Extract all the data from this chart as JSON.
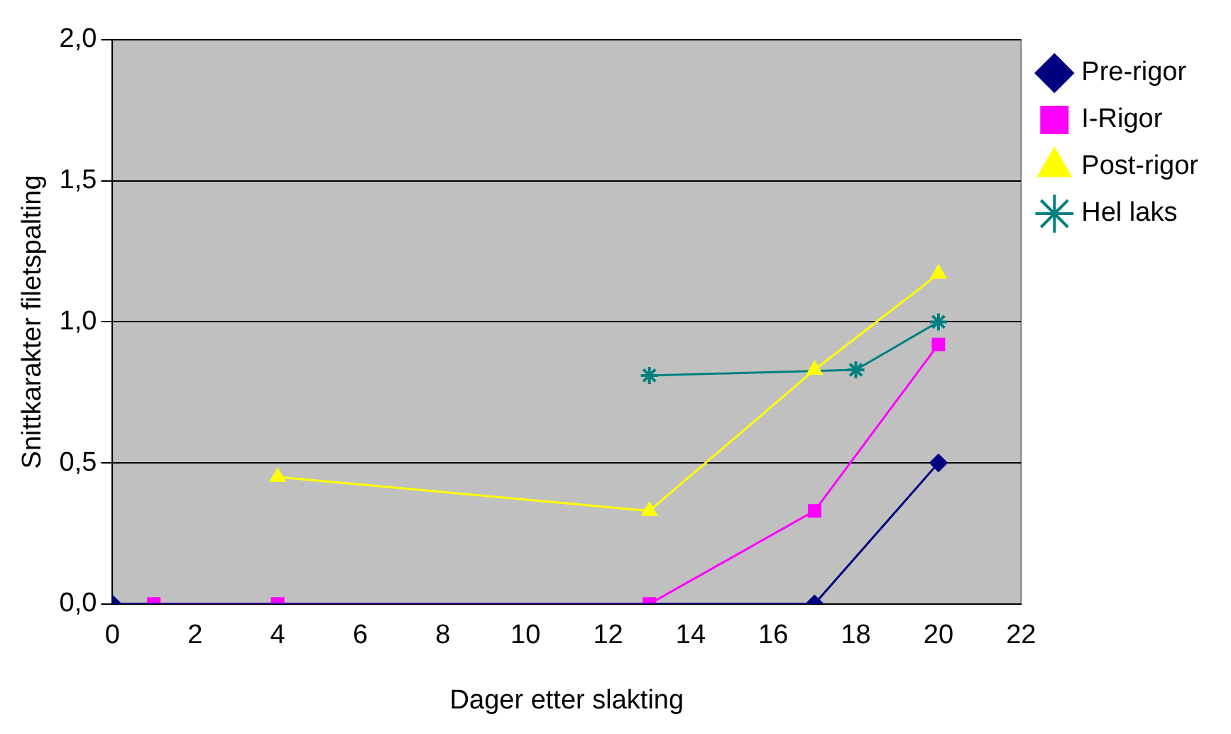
{
  "chart_data": {
    "type": "line",
    "xlabel": "Dager etter slakting",
    "ylabel": "Snittkarakter filetspalting",
    "xlim": [
      0,
      22
    ],
    "xticks": [
      0,
      2,
      4,
      6,
      8,
      10,
      12,
      14,
      16,
      18,
      20,
      22
    ],
    "ylim": [
      0,
      2
    ],
    "yticks": [
      {
        "value": 0,
        "label": "0,0"
      },
      {
        "value": 0.5,
        "label": "0,5"
      },
      {
        "value": 1,
        "label": "1,0"
      },
      {
        "value": 1.5,
        "label": "1,5"
      },
      {
        "value": 2,
        "label": "2,0"
      }
    ],
    "grid": "y",
    "legend": "right",
    "series": [
      {
        "name": "Pre-rigor",
        "color": "#000080",
        "marker": "diamond",
        "x": [
          0,
          17,
          20
        ],
        "values": [
          0,
          0,
          0.5
        ]
      },
      {
        "name": "I-Rigor",
        "color": "#ff00ff",
        "marker": "square",
        "x": [
          1,
          4,
          13,
          17,
          20
        ],
        "values": [
          0,
          0,
          0,
          0.33,
          0.92
        ]
      },
      {
        "name": "Post-rigor",
        "color": "#ffff00",
        "marker": "triangle",
        "x": [
          4,
          13,
          17,
          20
        ],
        "values": [
          0.45,
          0.33,
          0.83,
          1.17
        ]
      },
      {
        "name": "Hel laks",
        "color": "#008080",
        "marker": "cross",
        "x": [
          13,
          18,
          20
        ],
        "values": [
          0.81,
          0.83,
          1.0
        ]
      }
    ]
  }
}
